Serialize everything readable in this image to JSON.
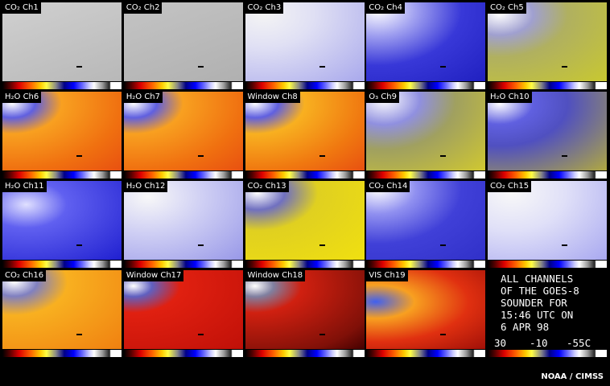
{
  "panels": [
    {
      "label": "CO₂ Ch1"
    },
    {
      "label": "CO₂ Ch2"
    },
    {
      "label": "CO₂ Ch3"
    },
    {
      "label": "CO₂ Ch4"
    },
    {
      "label": "CO₂ Ch5"
    },
    {
      "label": "H₂O Ch6"
    },
    {
      "label": "H₂O Ch7"
    },
    {
      "label": "Window Ch8"
    },
    {
      "label": "O₃ Ch9"
    },
    {
      "label": "H₂O Ch10"
    },
    {
      "label": "H₂O Ch11"
    },
    {
      "label": "H₂O Ch12"
    },
    {
      "label": "CO₂ Ch13"
    },
    {
      "label": "CO₂ Ch14"
    },
    {
      "label": "CO₂ Ch15"
    },
    {
      "label": "CO₂ Ch16"
    },
    {
      "label": "Window Ch17"
    },
    {
      "label": "Window Ch18"
    },
    {
      "label": "VIS Ch19"
    }
  ],
  "caption": {
    "lines": [
      "ALL CHANNELS",
      "OF THE GOES-8",
      "SOUNDER FOR",
      "15:46 UTC ON",
      "6 APR 98"
    ],
    "legend_labels": [
      "30",
      "-10",
      "-55C"
    ]
  },
  "credit": "NOAA / CIMSS"
}
